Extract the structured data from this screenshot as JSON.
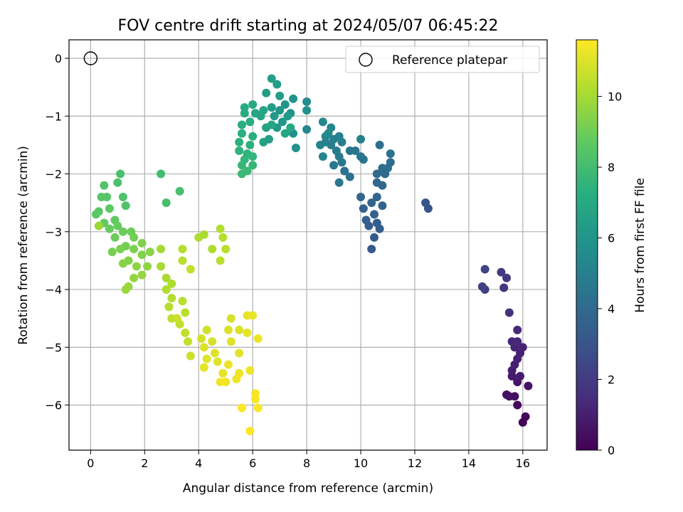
{
  "chart_data": {
    "type": "scatter",
    "title": "FOV centre drift starting at 2024/05/07 06:45:22",
    "xlabel": "Angular distance from reference (arcmin)",
    "ylabel": "Rotation from reference (arcmin)",
    "xlim": [
      -0.8,
      16.9
    ],
    "ylim": [
      -6.78,
      0.32
    ],
    "xticks": [
      0,
      2,
      4,
      6,
      8,
      10,
      12,
      14,
      16
    ],
    "yticks": [
      0,
      -1,
      -2,
      -3,
      -4,
      -5,
      -6
    ],
    "grid": true,
    "legend": {
      "position": "top-right",
      "entries": [
        {
          "label": "Reference platepar",
          "marker": "open-circle"
        }
      ]
    },
    "reference_point": {
      "x": 0,
      "y": 0
    },
    "colorbar": {
      "label": "Hours from first FF file",
      "colormap": "viridis",
      "range": [
        0,
        11.6
      ],
      "ticks": [
        0,
        2,
        4,
        6,
        8,
        10
      ]
    },
    "points": [
      {
        "x": 16.0,
        "y": -6.3,
        "h": 0.1
      },
      {
        "x": 16.1,
        "y": -6.2,
        "h": 0.2
      },
      {
        "x": 15.8,
        "y": -6.0,
        "h": 0.3
      },
      {
        "x": 15.7,
        "y": -5.85,
        "h": 0.4
      },
      {
        "x": 15.4,
        "y": -5.82,
        "h": 0.5
      },
      {
        "x": 15.5,
        "y": -5.85,
        "h": 0.55
      },
      {
        "x": 16.2,
        "y": -5.67,
        "h": 0.6
      },
      {
        "x": 15.8,
        "y": -5.6,
        "h": 0.7
      },
      {
        "x": 15.6,
        "y": -5.5,
        "h": 0.8
      },
      {
        "x": 15.9,
        "y": -5.5,
        "h": 0.85
      },
      {
        "x": 15.6,
        "y": -5.4,
        "h": 0.9
      },
      {
        "x": 15.7,
        "y": -5.3,
        "h": 1.0
      },
      {
        "x": 15.8,
        "y": -5.2,
        "h": 1.05
      },
      {
        "x": 15.9,
        "y": -5.1,
        "h": 1.1
      },
      {
        "x": 16.0,
        "y": -5.0,
        "h": 1.15
      },
      {
        "x": 15.7,
        "y": -5.0,
        "h": 1.2
      },
      {
        "x": 15.6,
        "y": -4.9,
        "h": 1.25
      },
      {
        "x": 15.8,
        "y": -4.9,
        "h": 1.3
      },
      {
        "x": 15.8,
        "y": -4.7,
        "h": 1.4
      },
      {
        "x": 15.5,
        "y": -4.4,
        "h": 1.6
      },
      {
        "x": 15.3,
        "y": -3.97,
        "h": 1.8
      },
      {
        "x": 15.4,
        "y": -3.8,
        "h": 1.9
      },
      {
        "x": 15.2,
        "y": -3.7,
        "h": 2.0
      },
      {
        "x": 14.6,
        "y": -4.0,
        "h": 2.1
      },
      {
        "x": 14.5,
        "y": -3.95,
        "h": 2.2
      },
      {
        "x": 14.6,
        "y": -3.65,
        "h": 2.3
      },
      {
        "x": 12.5,
        "y": -2.6,
        "h": 3.0
      },
      {
        "x": 12.4,
        "y": -2.5,
        "h": 3.05
      },
      {
        "x": 10.4,
        "y": -3.3,
        "h": 3.2
      },
      {
        "x": 10.5,
        "y": -3.1,
        "h": 3.3
      },
      {
        "x": 10.7,
        "y": -2.95,
        "h": 3.35
      },
      {
        "x": 10.3,
        "y": -2.9,
        "h": 3.4
      },
      {
        "x": 10.6,
        "y": -2.85,
        "h": 3.45
      },
      {
        "x": 10.2,
        "y": -2.8,
        "h": 3.5
      },
      {
        "x": 10.5,
        "y": -2.7,
        "h": 3.55
      },
      {
        "x": 10.1,
        "y": -2.6,
        "h": 3.6
      },
      {
        "x": 10.8,
        "y": -2.55,
        "h": 3.65
      },
      {
        "x": 10.4,
        "y": -2.5,
        "h": 3.7
      },
      {
        "x": 10.6,
        "y": -2.4,
        "h": 3.75
      },
      {
        "x": 10.0,
        "y": -2.4,
        "h": 3.8
      },
      {
        "x": 10.8,
        "y": -2.2,
        "h": 3.85
      },
      {
        "x": 10.6,
        "y": -2.15,
        "h": 3.9
      },
      {
        "x": 10.9,
        "y": -2.0,
        "h": 3.95
      },
      {
        "x": 10.6,
        "y": -2.0,
        "h": 4.0
      },
      {
        "x": 10.8,
        "y": -1.9,
        "h": 4.05
      },
      {
        "x": 11.1,
        "y": -1.8,
        "h": 4.1
      },
      {
        "x": 11.0,
        "y": -1.9,
        "h": 4.15
      },
      {
        "x": 10.7,
        "y": -1.5,
        "h": 4.2
      },
      {
        "x": 11.1,
        "y": -1.65,
        "h": 4.25
      },
      {
        "x": 9.6,
        "y": -2.05,
        "h": 4.3
      },
      {
        "x": 9.4,
        "y": -1.95,
        "h": 4.35
      },
      {
        "x": 10.1,
        "y": -1.75,
        "h": 4.4
      },
      {
        "x": 10.0,
        "y": -1.7,
        "h": 4.45
      },
      {
        "x": 9.8,
        "y": -1.6,
        "h": 4.5
      },
      {
        "x": 9.6,
        "y": -1.6,
        "h": 4.55
      },
      {
        "x": 9.2,
        "y": -2.15,
        "h": 4.6
      },
      {
        "x": 9.0,
        "y": -1.85,
        "h": 4.65
      },
      {
        "x": 9.3,
        "y": -1.8,
        "h": 4.7
      },
      {
        "x": 9.2,
        "y": -1.7,
        "h": 4.75
      },
      {
        "x": 9.1,
        "y": -1.6,
        "h": 4.8
      },
      {
        "x": 8.9,
        "y": -1.5,
        "h": 4.85
      },
      {
        "x": 9.3,
        "y": -1.45,
        "h": 4.9
      },
      {
        "x": 9.0,
        "y": -1.4,
        "h": 4.95
      },
      {
        "x": 9.2,
        "y": -1.35,
        "h": 5.0
      },
      {
        "x": 10.0,
        "y": -1.4,
        "h": 5.05
      },
      {
        "x": 8.7,
        "y": -1.45,
        "h": 5.1
      },
      {
        "x": 8.5,
        "y": -1.5,
        "h": 5.15
      },
      {
        "x": 8.7,
        "y": -1.35,
        "h": 5.2
      },
      {
        "x": 8.9,
        "y": -1.2,
        "h": 5.25
      },
      {
        "x": 8.6,
        "y": -1.7,
        "h": 5.3
      },
      {
        "x": 8.6,
        "y": -1.1,
        "h": 5.35
      },
      {
        "x": 8.0,
        "y": -1.23,
        "h": 5.4
      },
      {
        "x": 8.8,
        "y": -1.3,
        "h": 5.45
      },
      {
        "x": 8.0,
        "y": -0.75,
        "h": 5.6
      },
      {
        "x": 8.0,
        "y": -0.9,
        "h": 5.7
      },
      {
        "x": 7.5,
        "y": -1.3,
        "h": 5.8
      },
      {
        "x": 7.6,
        "y": -1.55,
        "h": 5.85
      },
      {
        "x": 7.4,
        "y": -0.95,
        "h": 5.9
      },
      {
        "x": 7.5,
        "y": -0.7,
        "h": 5.95
      },
      {
        "x": 7.2,
        "y": -0.8,
        "h": 6.0
      },
      {
        "x": 7.0,
        "y": -0.9,
        "h": 6.05
      },
      {
        "x": 7.1,
        "y": -1.1,
        "h": 6.1
      },
      {
        "x": 6.9,
        "y": -1.2,
        "h": 6.15
      },
      {
        "x": 6.8,
        "y": -1.0,
        "h": 6.2
      },
      {
        "x": 7.3,
        "y": -1.0,
        "h": 6.25
      },
      {
        "x": 6.7,
        "y": -0.85,
        "h": 6.3
      },
      {
        "x": 7.0,
        "y": -0.65,
        "h": 6.35
      },
      {
        "x": 6.5,
        "y": -0.6,
        "h": 6.4
      },
      {
        "x": 6.9,
        "y": -0.45,
        "h": 6.45
      },
      {
        "x": 6.7,
        "y": -0.35,
        "h": 6.5
      },
      {
        "x": 6.6,
        "y": -1.4,
        "h": 6.55
      },
      {
        "x": 6.4,
        "y": -1.45,
        "h": 6.6
      },
      {
        "x": 6.5,
        "y": -1.2,
        "h": 6.65
      },
      {
        "x": 6.3,
        "y": -1.0,
        "h": 6.7
      },
      {
        "x": 6.1,
        "y": -0.95,
        "h": 6.75
      },
      {
        "x": 6.4,
        "y": -0.9,
        "h": 6.8
      },
      {
        "x": 6.7,
        "y": -1.15,
        "h": 6.85
      },
      {
        "x": 7.2,
        "y": -1.3,
        "h": 6.9
      },
      {
        "x": 7.4,
        "y": -1.2,
        "h": 6.95
      },
      {
        "x": 6.0,
        "y": -0.8,
        "h": 7.0
      },
      {
        "x": 5.7,
        "y": -0.85,
        "h": 7.05
      },
      {
        "x": 5.7,
        "y": -0.95,
        "h": 7.1
      },
      {
        "x": 5.9,
        "y": -1.1,
        "h": 7.15
      },
      {
        "x": 5.6,
        "y": -1.15,
        "h": 7.2
      },
      {
        "x": 6.0,
        "y": -1.35,
        "h": 7.25
      },
      {
        "x": 5.6,
        "y": -1.3,
        "h": 7.3
      },
      {
        "x": 5.9,
        "y": -1.5,
        "h": 7.35
      },
      {
        "x": 5.5,
        "y": -1.45,
        "h": 7.4
      },
      {
        "x": 5.5,
        "y": -1.6,
        "h": 7.45
      },
      {
        "x": 5.8,
        "y": -1.65,
        "h": 7.5
      },
      {
        "x": 6.0,
        "y": -1.7,
        "h": 7.55
      },
      {
        "x": 5.7,
        "y": -1.75,
        "h": 7.6
      },
      {
        "x": 6.0,
        "y": -1.85,
        "h": 7.65
      },
      {
        "x": 5.6,
        "y": -1.85,
        "h": 7.7
      },
      {
        "x": 5.8,
        "y": -1.95,
        "h": 7.75
      },
      {
        "x": 5.6,
        "y": -2.0,
        "h": 7.8
      },
      {
        "x": 2.6,
        "y": -2.0,
        "h": 8.0
      },
      {
        "x": 2.8,
        "y": -2.5,
        "h": 8.05
      },
      {
        "x": 3.3,
        "y": -2.3,
        "h": 8.1
      },
      {
        "x": 1.1,
        "y": -2.0,
        "h": 8.2
      },
      {
        "x": 1.0,
        "y": -2.15,
        "h": 8.25
      },
      {
        "x": 1.2,
        "y": -2.4,
        "h": 8.3
      },
      {
        "x": 1.3,
        "y": -2.55,
        "h": 8.35
      },
      {
        "x": 0.5,
        "y": -2.2,
        "h": 8.4
      },
      {
        "x": 0.6,
        "y": -2.4,
        "h": 8.45
      },
      {
        "x": 0.4,
        "y": -2.4,
        "h": 8.5
      },
      {
        "x": 0.3,
        "y": -2.65,
        "h": 8.55
      },
      {
        "x": 0.2,
        "y": -2.7,
        "h": 8.6
      },
      {
        "x": 0.7,
        "y": -2.6,
        "h": 8.65
      },
      {
        "x": 0.9,
        "y": -2.8,
        "h": 8.7
      },
      {
        "x": 0.5,
        "y": -2.85,
        "h": 8.75
      },
      {
        "x": 0.7,
        "y": -2.95,
        "h": 8.8
      },
      {
        "x": 1.0,
        "y": -2.9,
        "h": 8.85
      },
      {
        "x": 1.2,
        "y": -3.0,
        "h": 8.9
      },
      {
        "x": 0.9,
        "y": -3.1,
        "h": 8.95
      },
      {
        "x": 1.5,
        "y": -3.0,
        "h": 9.0
      },
      {
        "x": 1.6,
        "y": -3.1,
        "h": 9.05
      },
      {
        "x": 1.3,
        "y": -3.25,
        "h": 9.1
      },
      {
        "x": 0.8,
        "y": -3.35,
        "h": 9.15
      },
      {
        "x": 1.1,
        "y": -3.3,
        "h": 9.2
      },
      {
        "x": 1.6,
        "y": -3.3,
        "h": 9.25
      },
      {
        "x": 1.9,
        "y": -3.2,
        "h": 9.3
      },
      {
        "x": 1.9,
        "y": -3.4,
        "h": 9.35
      },
      {
        "x": 1.4,
        "y": -3.5,
        "h": 9.4
      },
      {
        "x": 1.2,
        "y": -3.55,
        "h": 9.45
      },
      {
        "x": 2.2,
        "y": -3.35,
        "h": 9.5
      },
      {
        "x": 1.7,
        "y": -3.6,
        "h": 9.55
      },
      {
        "x": 2.1,
        "y": -3.6,
        "h": 9.6
      },
      {
        "x": 1.6,
        "y": -3.8,
        "h": 9.65
      },
      {
        "x": 1.9,
        "y": -3.75,
        "h": 9.7
      },
      {
        "x": 1.4,
        "y": -3.95,
        "h": 9.75
      },
      {
        "x": 1.3,
        "y": -4.0,
        "h": 9.8
      },
      {
        "x": 0.3,
        "y": -2.9,
        "h": 9.85
      },
      {
        "x": 2.6,
        "y": -3.3,
        "h": 10.0
      },
      {
        "x": 2.6,
        "y": -3.6,
        "h": 10.05
      },
      {
        "x": 2.8,
        "y": -3.8,
        "h": 10.1
      },
      {
        "x": 3.0,
        "y": -3.9,
        "h": 10.15
      },
      {
        "x": 2.8,
        "y": -4.0,
        "h": 10.2
      },
      {
        "x": 3.0,
        "y": -4.15,
        "h": 10.25
      },
      {
        "x": 2.9,
        "y": -4.3,
        "h": 10.3
      },
      {
        "x": 3.4,
        "y": -4.2,
        "h": 10.35
      },
      {
        "x": 3.5,
        "y": -4.4,
        "h": 10.4
      },
      {
        "x": 3.0,
        "y": -4.5,
        "h": 10.45
      },
      {
        "x": 3.3,
        "y": -4.6,
        "h": 10.5
      },
      {
        "x": 3.5,
        "y": -4.75,
        "h": 10.55
      },
      {
        "x": 3.6,
        "y": -4.9,
        "h": 10.6
      },
      {
        "x": 3.7,
        "y": -5.15,
        "h": 10.65
      },
      {
        "x": 3.2,
        "y": -4.5,
        "h": 10.7
      },
      {
        "x": 3.7,
        "y": -3.65,
        "h": 10.6
      },
      {
        "x": 3.4,
        "y": -3.3,
        "h": 10.3
      },
      {
        "x": 3.4,
        "y": -3.5,
        "h": 10.4
      },
      {
        "x": 4.2,
        "y": -3.05,
        "h": 10.1
      },
      {
        "x": 4.0,
        "y": -3.1,
        "h": 10.15
      },
      {
        "x": 4.5,
        "y": -3.3,
        "h": 10.2
      },
      {
        "x": 4.8,
        "y": -2.95,
        "h": 10.25
      },
      {
        "x": 4.9,
        "y": -3.1,
        "h": 10.3
      },
      {
        "x": 5.0,
        "y": -3.3,
        "h": 10.35
      },
      {
        "x": 4.8,
        "y": -3.5,
        "h": 10.4
      },
      {
        "x": 4.3,
        "y": -4.7,
        "h": 10.8
      },
      {
        "x": 4.1,
        "y": -4.85,
        "h": 10.85
      },
      {
        "x": 4.5,
        "y": -4.9,
        "h": 10.9
      },
      {
        "x": 4.2,
        "y": -5.0,
        "h": 10.95
      },
      {
        "x": 4.6,
        "y": -5.1,
        "h": 11.0
      },
      {
        "x": 4.3,
        "y": -5.2,
        "h": 11.05
      },
      {
        "x": 4.7,
        "y": -5.25,
        "h": 11.1
      },
      {
        "x": 4.2,
        "y": -5.35,
        "h": 11.15
      },
      {
        "x": 4.9,
        "y": -5.45,
        "h": 11.2
      },
      {
        "x": 5.1,
        "y": -5.3,
        "h": 11.25
      },
      {
        "x": 5.2,
        "y": -4.5,
        "h": 10.9
      },
      {
        "x": 5.1,
        "y": -4.7,
        "h": 10.95
      },
      {
        "x": 5.5,
        "y": -4.7,
        "h": 11.0
      },
      {
        "x": 5.2,
        "y": -4.9,
        "h": 11.05
      },
      {
        "x": 5.5,
        "y": -5.1,
        "h": 11.1
      },
      {
        "x": 5.8,
        "y": -4.75,
        "h": 11.15
      },
      {
        "x": 5.8,
        "y": -4.45,
        "h": 11.2
      },
      {
        "x": 6.0,
        "y": -4.45,
        "h": 11.25
      },
      {
        "x": 6.2,
        "y": -4.85,
        "h": 11.3
      },
      {
        "x": 5.5,
        "y": -5.45,
        "h": 11.3
      },
      {
        "x": 5.9,
        "y": -5.4,
        "h": 11.35
      },
      {
        "x": 5.4,
        "y": -5.55,
        "h": 11.35
      },
      {
        "x": 4.8,
        "y": -5.6,
        "h": 11.4
      },
      {
        "x": 5.0,
        "y": -5.6,
        "h": 11.4
      },
      {
        "x": 6.1,
        "y": -5.8,
        "h": 11.45
      },
      {
        "x": 6.1,
        "y": -5.9,
        "h": 11.5
      },
      {
        "x": 6.2,
        "y": -6.05,
        "h": 11.5
      },
      {
        "x": 5.6,
        "y": -6.05,
        "h": 11.55
      },
      {
        "x": 5.9,
        "y": -6.45,
        "h": 11.6
      }
    ]
  }
}
